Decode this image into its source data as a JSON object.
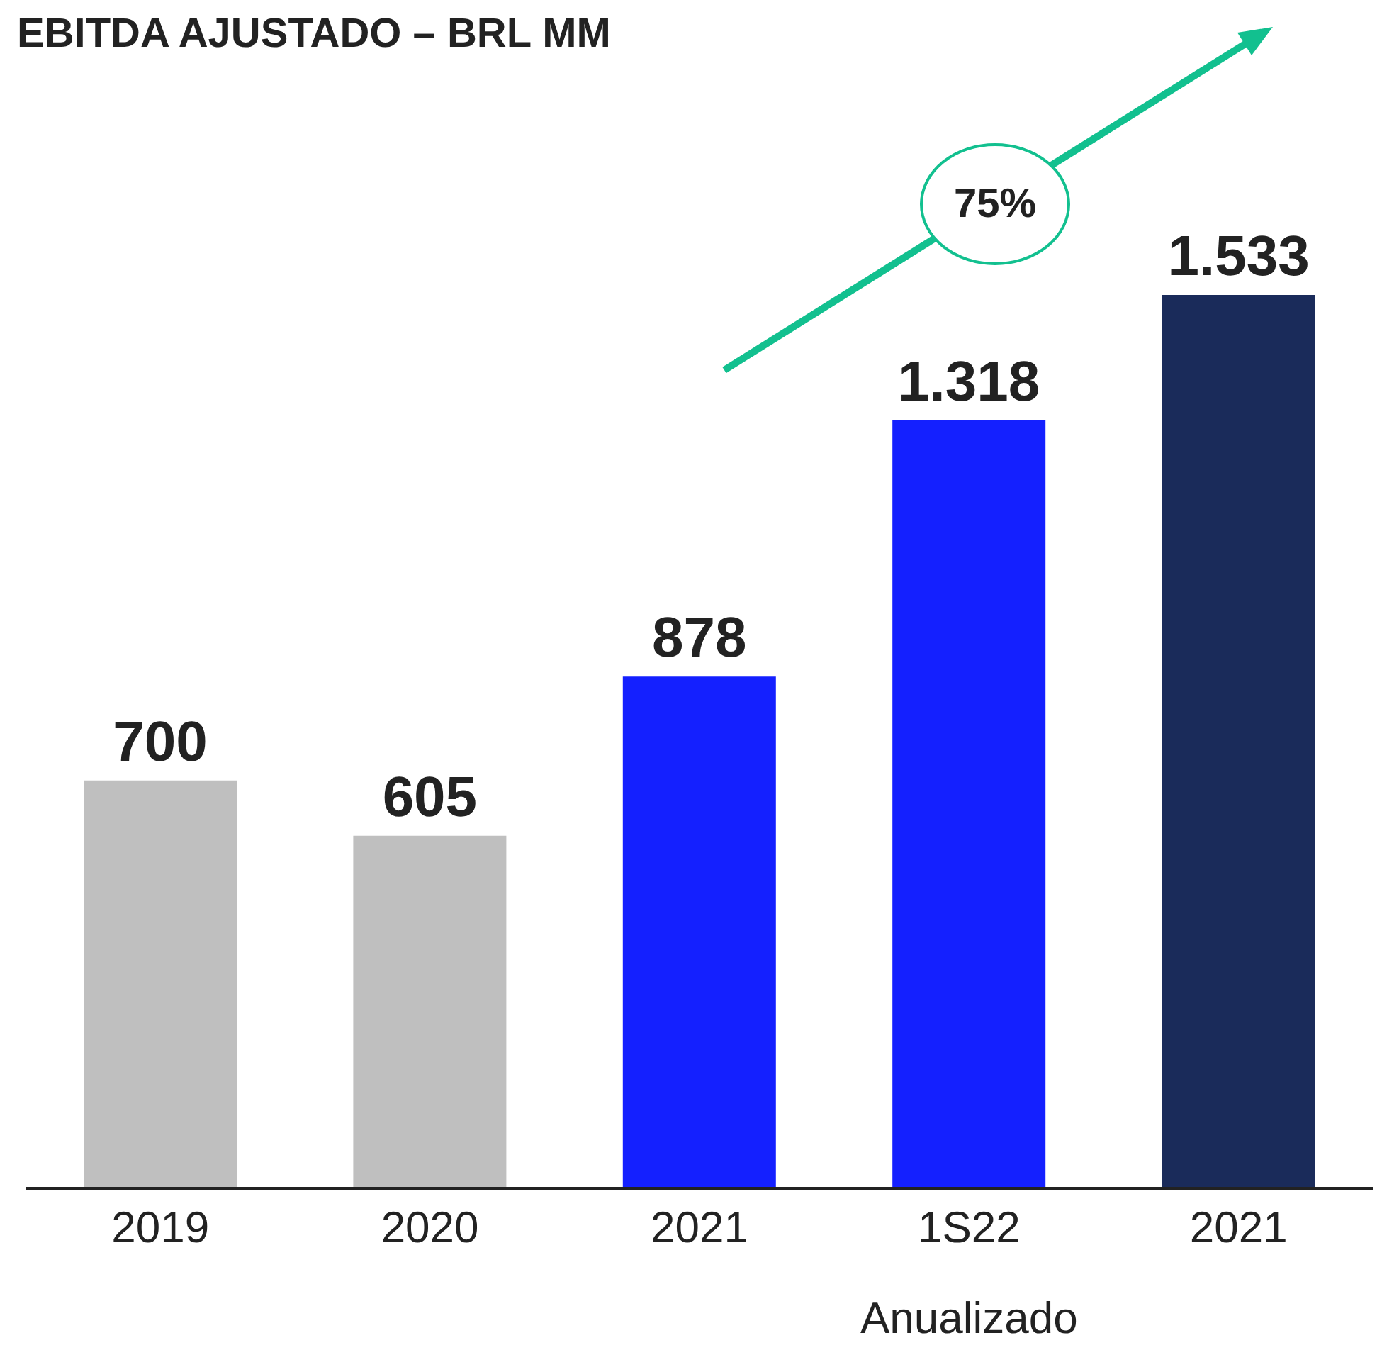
{
  "chart_data": {
    "type": "bar",
    "title": "EBITDA AJUSTADO – BRL MM",
    "categories": [
      "2019",
      "2020",
      "2021",
      "1S22 Anualizado",
      "2021"
    ],
    "values": [
      700,
      605,
      878,
      1318,
      1533
    ],
    "colors": [
      "#bfbfbf",
      "#bfbfbf",
      "#1420ff",
      "#1420ff",
      "#1a2b5a"
    ],
    "value_labels": [
      "700",
      "605",
      "878",
      "1.318",
      "1.533"
    ],
    "annotations": [
      "75%"
    ],
    "grid": false,
    "legend": false
  }
}
